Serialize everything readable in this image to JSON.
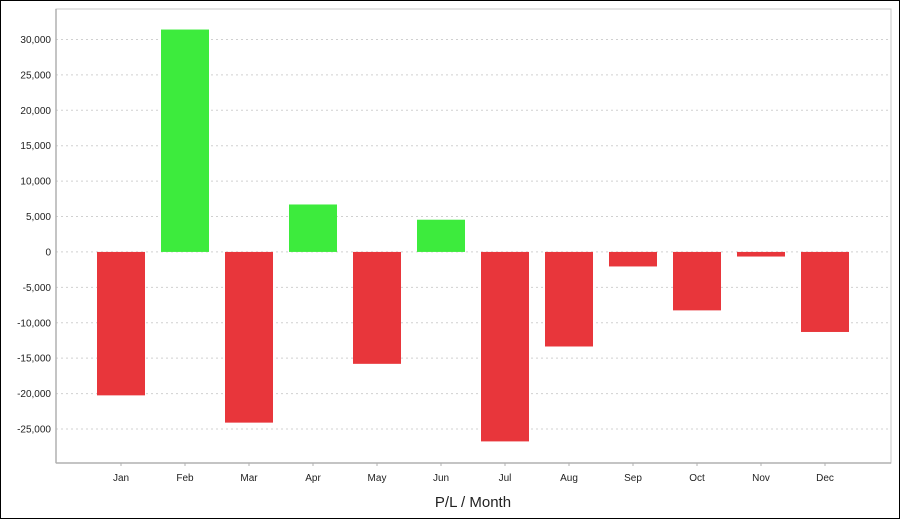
{
  "chart_data": {
    "type": "bar",
    "title": "",
    "xlabel": "P/L / Month",
    "ylabel": "",
    "categories": [
      "Jan",
      "Feb",
      "Mar",
      "Apr",
      "May",
      "Jun",
      "Jul",
      "Aug",
      "Sep",
      "Oct",
      "Nov",
      "Dec"
    ],
    "values": [
      -20250,
      31400,
      -24100,
      6700,
      -15800,
      4550,
      -26750,
      -13350,
      -2050,
      -8250,
      -650,
      -11300
    ],
    "ylim": [
      -29800,
      34300
    ],
    "yticks": [
      30000,
      25000,
      20000,
      15000,
      10000,
      5000,
      0,
      -5000,
      -10000,
      -15000,
      -20000,
      -25000
    ],
    "ytick_labels": [
      "30,000",
      "25,000",
      "20,000",
      "15,000",
      "10,000",
      "5,000",
      "0",
      "-5,000",
      "-10,000",
      "-15,000",
      "-20,000",
      "-25,000"
    ],
    "grid": true,
    "colors": {
      "positive": "#3deb3d",
      "negative": "#e8363b",
      "grid": "#d0d0d0",
      "axis": "#b0b0b0"
    }
  }
}
